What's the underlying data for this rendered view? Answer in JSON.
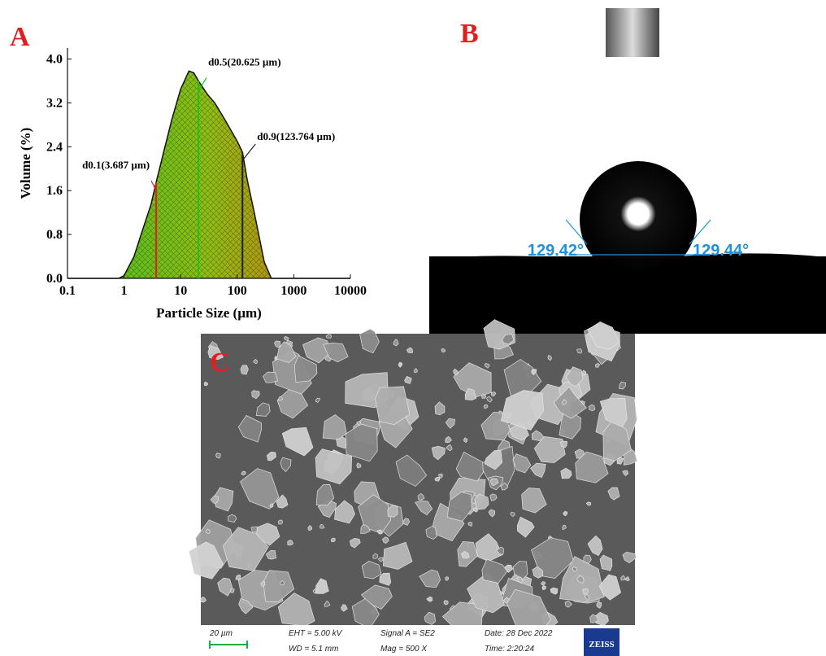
{
  "chart_data": {
    "type": "area",
    "panel_label": "A",
    "x_label": "Particle Size (µm)",
    "y_label": "Volume (%)",
    "x": [
      0.1,
      0.8,
      1,
      1.5,
      2,
      3,
      3.687,
      5,
      7,
      10,
      14,
      17,
      20.625,
      30,
      40,
      60,
      100,
      123.764,
      150,
      200,
      300,
      400,
      10000
    ],
    "values": [
      0,
      0,
      0.05,
      0.4,
      0.8,
      1.35,
      1.75,
      2.3,
      2.9,
      3.45,
      3.78,
      3.75,
      3.6,
      3.35,
      3.2,
      2.9,
      2.5,
      2.3,
      1.8,
      1.2,
      0.3,
      0,
      0
    ],
    "fill_colors": [
      "#3cc01c",
      "#8fbf10",
      "#e0620e"
    ],
    "hatch": true,
    "log_x": true,
    "xlim": [
      0.1,
      10000
    ],
    "xticks": [
      0.1,
      1,
      10,
      100,
      1000,
      10000
    ],
    "ylim": [
      0,
      4.2
    ],
    "yticks": [
      {
        "value": 0,
        "label": "0.0"
      },
      0.8,
      1.6,
      2.4,
      3.2,
      {
        "value": 4,
        "label": "4.0"
      }
    ],
    "annotations": [
      {
        "x": 3.687,
        "text": "d0.1(3.687 µm)",
        "color": "#e02020"
      },
      {
        "x": 20.625,
        "text": "d0.5(20.625 µm)",
        "color": "#20c020"
      },
      {
        "x": 123.764,
        "text": "d0.9(123.764 µm)",
        "color": "#202020"
      }
    ]
  },
  "panel_b": {
    "label": "B",
    "left_angle": "129.42°",
    "right_angle": "129.44°"
  },
  "panel_c": {
    "label": "C",
    "scale_bar": "20 µm",
    "eht": "EHT =  5.00 kV",
    "wd": "WD =  5.1 mm",
    "signal": "Signal A = SE2",
    "mag": "Mag =    500 X",
    "date": "Date: 28 Dec 2022",
    "time": "Time: 2:20:24",
    "logo": "ZEISS"
  }
}
